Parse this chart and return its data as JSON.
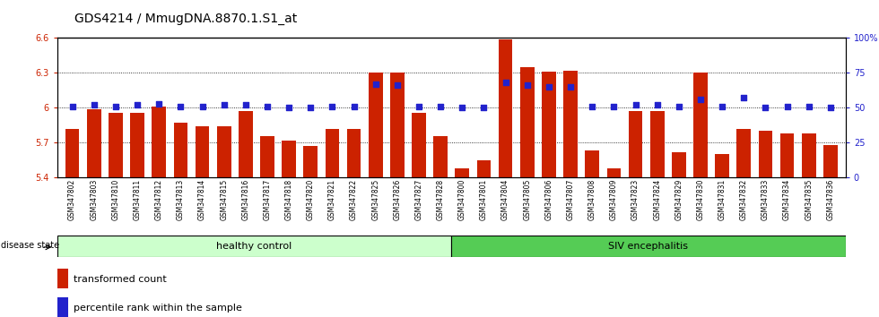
{
  "title": "GDS4214 / MmugDNA.8870.1.S1_at",
  "samples": [
    "GSM347802",
    "GSM347803",
    "GSM347810",
    "GSM347811",
    "GSM347812",
    "GSM347813",
    "GSM347814",
    "GSM347815",
    "GSM347816",
    "GSM347817",
    "GSM347818",
    "GSM347820",
    "GSM347821",
    "GSM347822",
    "GSM347825",
    "GSM347826",
    "GSM347827",
    "GSM347828",
    "GSM347800",
    "GSM347801",
    "GSM347804",
    "GSM347805",
    "GSM347806",
    "GSM347807",
    "GSM347808",
    "GSM347809",
    "GSM347823",
    "GSM347824",
    "GSM347829",
    "GSM347830",
    "GSM347831",
    "GSM347832",
    "GSM347833",
    "GSM347834",
    "GSM347835",
    "GSM347836"
  ],
  "bar_values": [
    5.82,
    5.99,
    5.96,
    5.96,
    6.01,
    5.87,
    5.84,
    5.84,
    5.97,
    5.76,
    5.72,
    5.67,
    5.82,
    5.82,
    6.3,
    6.3,
    5.96,
    5.76,
    5.48,
    5.55,
    6.59,
    6.35,
    6.31,
    6.32,
    5.63,
    5.48,
    5.97,
    5.97,
    5.62,
    6.3,
    5.6,
    5.82,
    5.8,
    5.78,
    5.78,
    5.68
  ],
  "percentile_values": [
    51,
    52,
    51,
    52,
    53,
    51,
    51,
    52,
    52,
    51,
    50,
    50,
    51,
    51,
    67,
    66,
    51,
    51,
    50,
    50,
    68,
    66,
    65,
    65,
    51,
    51,
    52,
    52,
    51,
    56,
    51,
    57,
    50,
    51,
    51,
    50
  ],
  "healthy_count": 18,
  "ylim_left": [
    5.4,
    6.6
  ],
  "ylim_right": [
    0,
    100
  ],
  "yticks_left": [
    5.4,
    5.7,
    6.0,
    6.3,
    6.6
  ],
  "yticks_right": [
    0,
    25,
    50,
    75,
    100
  ],
  "ytick_labels_left": [
    "5.4",
    "5.7",
    "6",
    "6.3",
    "6.6"
  ],
  "ytick_labels_right": [
    "0",
    "25",
    "50",
    "75",
    "100%"
  ],
  "bar_color": "#cc2200",
  "dot_color": "#2222cc",
  "healthy_bg": "#ccffcc",
  "siv_bg": "#55cc55",
  "healthy_label": "healthy control",
  "siv_label": "SIV encephalitis",
  "disease_state_label": "disease state",
  "legend_bar_label": "transformed count",
  "legend_dot_label": "percentile rank within the sample",
  "hline_values": [
    5.7,
    6.0,
    6.3
  ],
  "ax_bg": "#ffffff",
  "title_fontsize": 10,
  "tick_fontsize": 7,
  "xtick_fontsize": 5.5,
  "label_fontsize": 8
}
